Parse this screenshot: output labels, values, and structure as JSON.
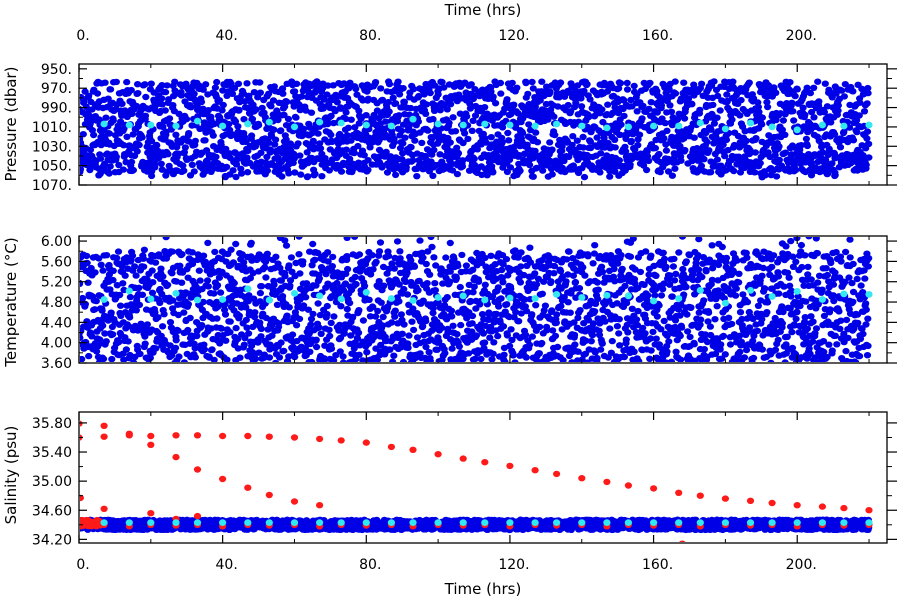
{
  "colors": {
    "background": "#ffffff",
    "axis": "#000000",
    "raw_points": "#0000e6",
    "mean_points": "#33e8f0",
    "flagged_points": "#ff1a1a"
  },
  "chart_data": [
    {
      "id": "pressure",
      "type": "scatter",
      "xlabel_top": "Time (hrs)",
      "ylabel": "Pressure (dbar)",
      "x_ticks": [
        "0.",
        "40.",
        "80.",
        "120.",
        "160.",
        "200."
      ],
      "x_tick_values": [
        0,
        40,
        80,
        120,
        160,
        200
      ],
      "xlim": [
        0,
        225
      ],
      "ylim": [
        1070,
        945
      ],
      "y_inverted": true,
      "y_ticks": [
        "950.",
        "970.",
        "990.",
        "1010.",
        "1030.",
        "1050.",
        "1070."
      ],
      "y_tick_values": [
        950,
        970,
        990,
        1010,
        1030,
        1050,
        1070
      ],
      "series": [
        {
          "role": "raw",
          "x_range": [
            0,
            220
          ],
          "y_band": [
            963,
            1057
          ],
          "sparse_below": [
            1038,
            1062
          ]
        },
        {
          "role": "mean",
          "x": [
            7,
            14,
            20,
            27,
            33,
            40,
            47,
            53,
            60,
            67,
            73,
            80,
            87,
            93,
            100,
            107,
            113,
            120,
            127,
            133,
            140,
            147,
            153,
            160,
            167,
            173,
            180,
            187,
            193,
            200,
            207,
            213,
            220
          ],
          "y": [
            1007,
            1008,
            1008,
            1009,
            1004,
            1009,
            1007,
            1005,
            1010,
            1005,
            1006,
            1008,
            1009,
            1002,
            1007,
            1008,
            1007,
            1008,
            1009,
            1007,
            1009,
            1011,
            1010,
            1009,
            1009,
            1006,
            1012,
            1006,
            1010,
            1013,
            1008,
            1009,
            1008
          ]
        }
      ]
    },
    {
      "id": "temperature",
      "type": "scatter",
      "ylabel": "Temperature (°C)",
      "xlim": [
        0,
        225
      ],
      "ylim": [
        3.6,
        6.1
      ],
      "y_ticks": [
        "6.00",
        "5.60",
        "5.20",
        "4.80",
        "4.40",
        "4.00",
        "3.60"
      ],
      "y_tick_values": [
        6.0,
        5.6,
        5.2,
        4.8,
        4.4,
        4.0,
        3.6
      ],
      "series": [
        {
          "role": "raw",
          "x_range": [
            0,
            220
          ],
          "y_band": [
            3.6,
            5.8
          ],
          "spikes_to": 6.1
        },
        {
          "role": "mean",
          "x": [
            7,
            14,
            20,
            27,
            33,
            40,
            47,
            53,
            60,
            67,
            73,
            80,
            87,
            93,
            100,
            107,
            113,
            120,
            127,
            133,
            140,
            147,
            153,
            160,
            167,
            173,
            180,
            187,
            193,
            200,
            207,
            213,
            220
          ],
          "y": [
            4.85,
            5.02,
            4.86,
            4.97,
            4.84,
            4.85,
            5.06,
            4.84,
            4.97,
            4.92,
            4.86,
            4.99,
            4.87,
            4.83,
            4.89,
            4.92,
            4.84,
            4.88,
            4.87,
            4.95,
            4.89,
            4.93,
            4.92,
            4.82,
            4.87,
            5.03,
            4.78,
            5.03,
            4.91,
            5.01,
            4.85,
            4.96,
            4.95
          ]
        }
      ]
    },
    {
      "id": "salinity",
      "type": "scatter",
      "xlabel": "Time (hrs)",
      "ylabel": "Salinity (psu)",
      "x_ticks": [
        "0.",
        "40.",
        "80.",
        "120.",
        "160.",
        "200."
      ],
      "x_tick_values": [
        0,
        40,
        80,
        120,
        160,
        200
      ],
      "xlim": [
        0,
        225
      ],
      "ylim": [
        34.15,
        35.95
      ],
      "y_ticks": [
        "35.80",
        "35.40",
        "35.00",
        "34.60",
        "34.20"
      ],
      "y_tick_values": [
        35.8,
        35.4,
        35.0,
        34.6,
        34.2
      ],
      "series": [
        {
          "role": "raw",
          "x_range": [
            0,
            220
          ],
          "y_band": [
            34.33,
            34.47
          ]
        },
        {
          "role": "mean",
          "x": [
            7,
            14,
            20,
            27,
            33,
            40,
            47,
            53,
            60,
            67,
            73,
            80,
            87,
            93,
            100,
            107,
            113,
            120,
            127,
            133,
            140,
            147,
            153,
            160,
            167,
            173,
            180,
            187,
            193,
            200,
            207,
            213,
            220
          ],
          "y": [
            34.43,
            34.43,
            34.43,
            34.43,
            34.43,
            34.43,
            34.43,
            34.43,
            34.43,
            34.43,
            34.43,
            34.43,
            34.43,
            34.43,
            34.43,
            34.43,
            34.43,
            34.43,
            34.43,
            34.43,
            34.43,
            34.43,
            34.43,
            34.43,
            34.43,
            34.43,
            34.43,
            34.43,
            34.43,
            34.43,
            34.43,
            34.43,
            34.43
          ]
        },
        {
          "role": "flagged",
          "cluster_near_zero": {
            "x_range": [
              0,
              6
            ],
            "y_range": [
              34.38,
              34.47
            ]
          },
          "x": [
            0,
            0,
            0.4,
            7,
            7,
            7,
            7,
            14,
            14,
            20,
            20,
            20,
            27,
            27,
            27,
            33,
            33,
            33,
            40,
            40,
            47,
            47,
            53,
            53,
            60,
            60,
            67,
            67,
            73,
            80,
            87,
            93,
            100,
            107,
            113,
            120,
            127,
            133,
            140,
            147,
            153,
            160,
            167,
            168,
            173,
            180,
            187,
            193,
            200,
            207,
            213,
            220,
            7,
            14,
            20,
            27,
            33,
            40,
            47,
            53,
            60,
            67,
            73,
            80,
            87,
            93,
            100,
            107,
            113,
            120,
            127,
            133,
            140,
            147,
            153,
            160,
            167,
            173,
            180,
            187,
            193,
            200,
            207,
            213,
            220
          ],
          "y": [
            35.6,
            35.79,
            34.77,
            35.76,
            35.61,
            34.62,
            34.42,
            35.65,
            35.63,
            35.62,
            35.5,
            34.56,
            35.63,
            35.33,
            34.48,
            35.63,
            35.16,
            34.52,
            35.62,
            35.03,
            35.62,
            34.91,
            35.61,
            34.81,
            35.6,
            34.72,
            35.58,
            34.67,
            35.56,
            35.53,
            35.47,
            35.43,
            35.37,
            35.31,
            35.26,
            35.21,
            35.15,
            35.1,
            35.04,
            34.99,
            34.94,
            34.9,
            34.84,
            34.14,
            34.8,
            34.76,
            34.73,
            34.7,
            34.67,
            34.65,
            34.63,
            34.6,
            34.4,
            34.38,
            34.4,
            34.39,
            34.4,
            34.38,
            34.4,
            34.39,
            34.4,
            34.38,
            34.4,
            34.39,
            34.4,
            34.38,
            34.4,
            34.39,
            34.4,
            34.38,
            34.4,
            34.39,
            34.4,
            34.38,
            34.4,
            34.39,
            34.4,
            34.38,
            34.4,
            34.39,
            34.4,
            34.38,
            34.4,
            34.39,
            34.4
          ]
        }
      ]
    }
  ]
}
